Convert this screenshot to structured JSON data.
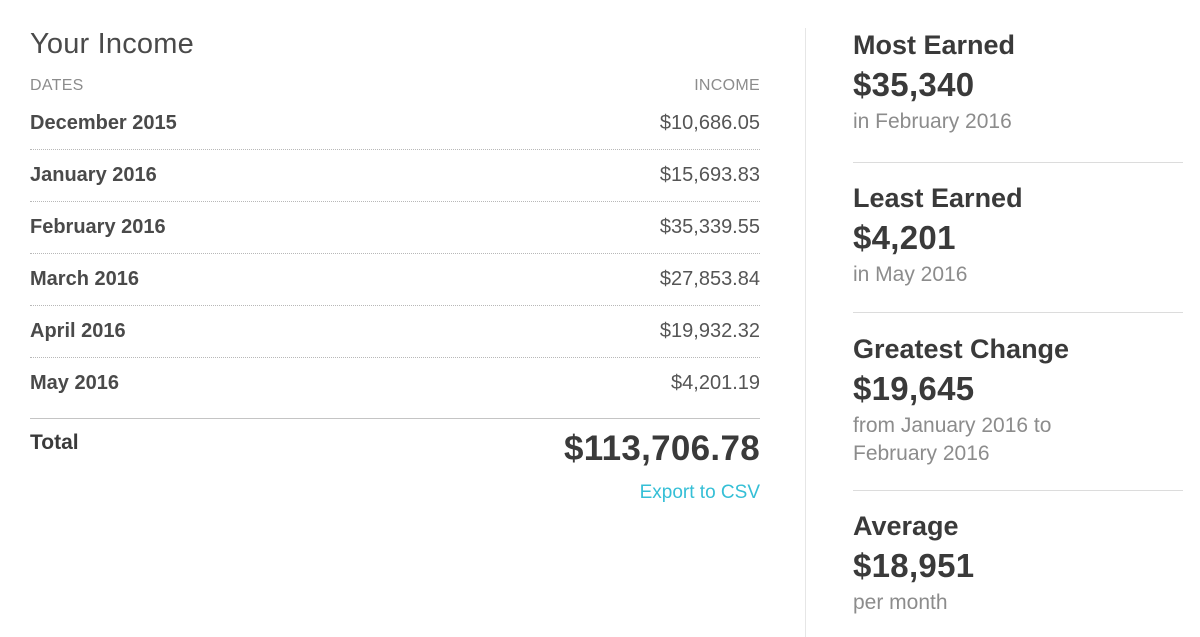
{
  "income": {
    "title": "Your Income",
    "columns": {
      "dates": "DATES",
      "income": "INCOME"
    },
    "rows": [
      {
        "date": "December 2015",
        "amount": "$10,686.05"
      },
      {
        "date": "January 2016",
        "amount": "$15,693.83"
      },
      {
        "date": "February 2016",
        "amount": "$35,339.55"
      },
      {
        "date": "March 2016",
        "amount": "$27,853.84"
      },
      {
        "date": "April 2016",
        "amount": "$19,932.32"
      },
      {
        "date": "May 2016",
        "amount": "$4,201.19"
      }
    ],
    "total_label": "Total",
    "total_value": "$113,706.78",
    "export_label": "Export to CSV"
  },
  "stats": {
    "most_earned": {
      "title": "Most Earned",
      "value": "$35,340",
      "sub": "in February 2016"
    },
    "least_earned": {
      "title": "Least Earned",
      "value": "$4,201",
      "sub": "in May 2016"
    },
    "greatest_change": {
      "title": "Greatest Change",
      "value": "$19,645",
      "sub_line1": "from January 2016 to",
      "sub_line2": "February 2016"
    },
    "average": {
      "title": "Average",
      "value": "$18,951",
      "sub": "per month"
    }
  },
  "colors": {
    "link": "#35bfd6",
    "text_dark": "#3a3a3a",
    "text_muted": "#8c8c8c"
  }
}
